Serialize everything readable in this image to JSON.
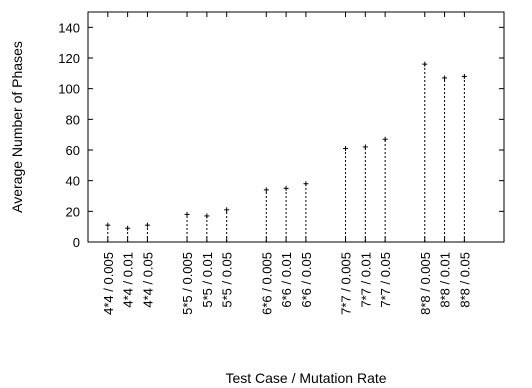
{
  "chart_data": {
    "type": "scatter",
    "style": "impulses",
    "title": "",
    "xlabel": "Test Case / Mutation Rate",
    "ylabel": "Average Number of Phases",
    "ylim": [
      0,
      150
    ],
    "yticks": [
      0,
      20,
      40,
      60,
      80,
      100,
      120,
      140
    ],
    "grid": false,
    "legend": "none",
    "groups": [
      {
        "categories": [
          "4*4 / 0.005",
          "4*4 / 0.01",
          "4*4 / 0.05"
        ],
        "values": [
          11,
          9,
          11
        ]
      },
      {
        "categories": [
          "5*5 / 0.005",
          "5*5 / 0.01",
          "5*5 / 0.05"
        ],
        "values": [
          18,
          17,
          21
        ]
      },
      {
        "categories": [
          "6*6 / 0.005",
          "6*6 / 0.01",
          "6*6 / 0.05"
        ],
        "values": [
          34,
          35,
          38
        ]
      },
      {
        "categories": [
          "7*7 / 0.005",
          "7*7 / 0.01",
          "7*7 / 0.05"
        ],
        "values": [
          61,
          62,
          67
        ]
      },
      {
        "categories": [
          "8*8 / 0.005",
          "8*8 / 0.01",
          "8*8 / 0.05"
        ],
        "values": [
          116,
          107,
          108
        ]
      }
    ]
  }
}
